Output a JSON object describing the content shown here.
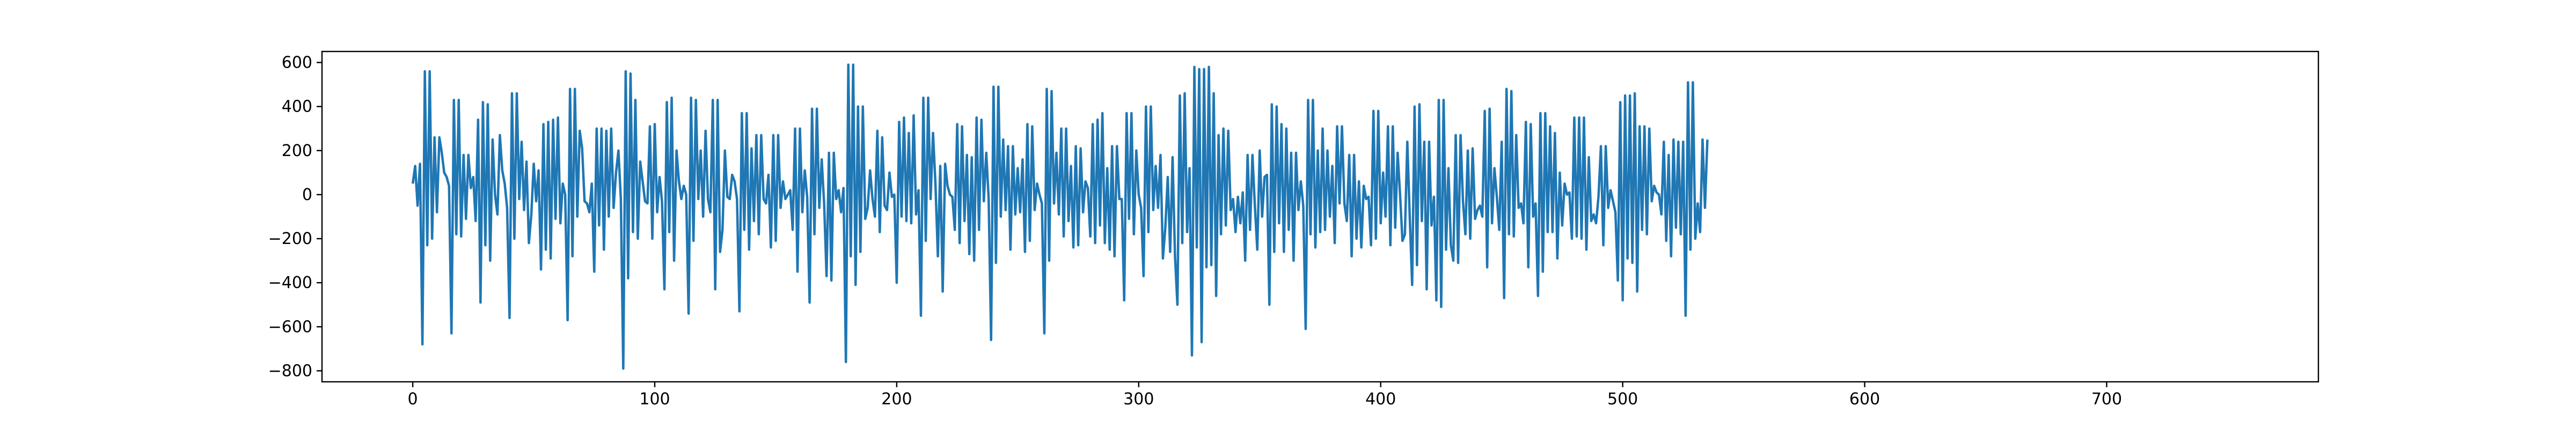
{
  "chart_data": {
    "type": "line",
    "title": "",
    "xlabel": "",
    "ylabel": "",
    "xlim": [
      -37.5,
      787.5
    ],
    "ylim": [
      -850,
      650
    ],
    "x_ticks": [
      0,
      100,
      200,
      300,
      400,
      500,
      600,
      700
    ],
    "y_ticks": [
      -800,
      -600,
      -400,
      -200,
      0,
      200,
      400,
      600
    ],
    "x_tick_labels": [
      "0",
      "100",
      "200",
      "300",
      "400",
      "500",
      "600",
      "700"
    ],
    "y_tick_labels": [
      "−800",
      "−600",
      "−400",
      "−200",
      "0",
      "200",
      "400",
      "600"
    ],
    "grid": false,
    "legend": "none",
    "series": [
      {
        "color": "#1f77b4",
        "x_start": 0,
        "x_step": 1,
        "values": [
          50,
          130,
          -50,
          140,
          -680,
          560,
          -230,
          560,
          -200,
          260,
          -80,
          260,
          190,
          100,
          80,
          40,
          -630,
          430,
          -180,
          430,
          -190,
          180,
          -110,
          180,
          30,
          80,
          -120,
          340,
          -490,
          420,
          -230,
          410,
          -300,
          250,
          0,
          -90,
          270,
          110,
          50,
          -60,
          -560,
          460,
          -200,
          460,
          -20,
          240,
          -70,
          150,
          -220,
          -90,
          140,
          -30,
          110,
          -340,
          320,
          -250,
          330,
          -290,
          340,
          -110,
          350,
          -130,
          50,
          0,
          -570,
          480,
          -280,
          480,
          -100,
          290,
          210,
          -30,
          -40,
          -80,
          50,
          -350,
          300,
          -140,
          300,
          -250,
          290,
          -100,
          300,
          -60,
          100,
          200,
          -20,
          -790,
          560,
          -380,
          550,
          -170,
          430,
          -200,
          150,
          60,
          -30,
          -40,
          310,
          -200,
          320,
          -80,
          80,
          -30,
          -430,
          420,
          -170,
          440,
          -300,
          200,
          60,
          -20,
          40,
          0,
          -540,
          440,
          -210,
          430,
          -20,
          200,
          -100,
          290,
          -20,
          -80,
          430,
          -430,
          430,
          -260,
          -160,
          200,
          -10,
          -20,
          90,
          60,
          -20,
          -530,
          370,
          -160,
          370,
          -250,
          210,
          -120,
          270,
          -180,
          270,
          -20,
          -40,
          90,
          -240,
          270,
          -210,
          270,
          -60,
          60,
          -20,
          0,
          20,
          -160,
          300,
          -350,
          300,
          -80,
          110,
          -10,
          -490,
          390,
          -180,
          390,
          -60,
          160,
          -40,
          -370,
          190,
          -390,
          190,
          -20,
          20,
          -80,
          30,
          -760,
          590,
          -280,
          590,
          -410,
          400,
          -260,
          400,
          -110,
          -60,
          110,
          -20,
          -100,
          290,
          -170,
          260,
          -50,
          -70,
          100,
          -10,
          0,
          -400,
          330,
          -100,
          350,
          -120,
          280,
          -130,
          360,
          -90,
          20,
          -550,
          440,
          -210,
          440,
          -20,
          280,
          50,
          -280,
          130,
          -440,
          140,
          40,
          0,
          -10,
          -160,
          320,
          -220,
          310,
          -120,
          180,
          -270,
          170,
          -300,
          350,
          -160,
          340,
          -30,
          190,
          -20,
          -660,
          490,
          -310,
          490,
          -100,
          250,
          -70,
          220,
          -250,
          220,
          -90,
          120,
          -80,
          160,
          -260,
          320,
          -210,
          310,
          -70,
          50,
          0,
          -40,
          -630,
          480,
          -300,
          470,
          -40,
          190,
          -90,
          300,
          -190,
          300,
          -120,
          130,
          -240,
          220,
          -230,
          210,
          -80,
          60,
          30,
          -190,
          320,
          -220,
          340,
          -140,
          370,
          -220,
          120,
          -250,
          220,
          -280,
          220,
          -20,
          -20,
          -480,
          370,
          -110,
          370,
          -180,
          200,
          0,
          -60,
          -370,
          400,
          -170,
          400,
          -70,
          130,
          -60,
          180,
          -290,
          -150,
          80,
          -260,
          170,
          -280,
          -500,
          450,
          -220,
          460,
          -170,
          120,
          -730,
          580,
          -240,
          570,
          -670,
          570,
          -330,
          580,
          -320,
          460,
          -460,
          270,
          -180,
          300,
          -140,
          290,
          -70,
          -20,
          -170,
          -10,
          -130,
          10,
          -300,
          180,
          -160,
          180,
          -50,
          -250,
          200,
          -100,
          80,
          90,
          -500,
          410,
          -260,
          400,
          -130,
          320,
          -260,
          300,
          -160,
          190,
          -300,
          190,
          -70,
          60,
          -50,
          -610,
          430,
          -180,
          430,
          -240,
          200,
          -170,
          300,
          -160,
          200,
          -100,
          130,
          -220,
          310,
          -40,
          310,
          -40,
          -120,
          180,
          -280,
          180,
          -200,
          60,
          -240,
          40,
          -20,
          -10,
          -230,
          380,
          -200,
          380,
          -130,
          100,
          -100,
          310,
          -230,
          310,
          -150,
          190,
          0,
          -210,
          -180,
          240,
          -100,
          -410,
          400,
          -320,
          410,
          -120,
          240,
          -430,
          240,
          -140,
          -10,
          -480,
          430,
          -510,
          430,
          -250,
          120,
          -230,
          -300,
          270,
          -310,
          270,
          -30,
          -180,
          200,
          -200,
          210,
          -110,
          -70,
          -50,
          -100,
          380,
          -330,
          390,
          -130,
          120,
          -10,
          -160,
          240,
          -470,
          480,
          -180,
          470,
          -190,
          270,
          -60,
          -40,
          -130,
          330,
          -330,
          320,
          -100,
          -40,
          -460,
          370,
          -350,
          370,
          -170,
          310,
          -170,
          280,
          -290,
          100,
          -140,
          50,
          0,
          10,
          -200,
          350,
          -190,
          350,
          -200,
          350,
          -250,
          170,
          -120,
          -90,
          -130,
          -10,
          220,
          -230,
          220,
          -60,
          20,
          -30,
          -80,
          -390,
          420,
          -480,
          450,
          -290,
          450,
          -310,
          460,
          -440,
          310,
          -160,
          310,
          -180,
          300,
          -30,
          40,
          10,
          0,
          -90,
          240,
          -210,
          180,
          -280,
          250,
          -150,
          240,
          -180,
          240,
          -550,
          510,
          -250,
          510,
          -200,
          -40,
          -170,
          250,
          -60,
          250
        ]
      }
    ]
  }
}
